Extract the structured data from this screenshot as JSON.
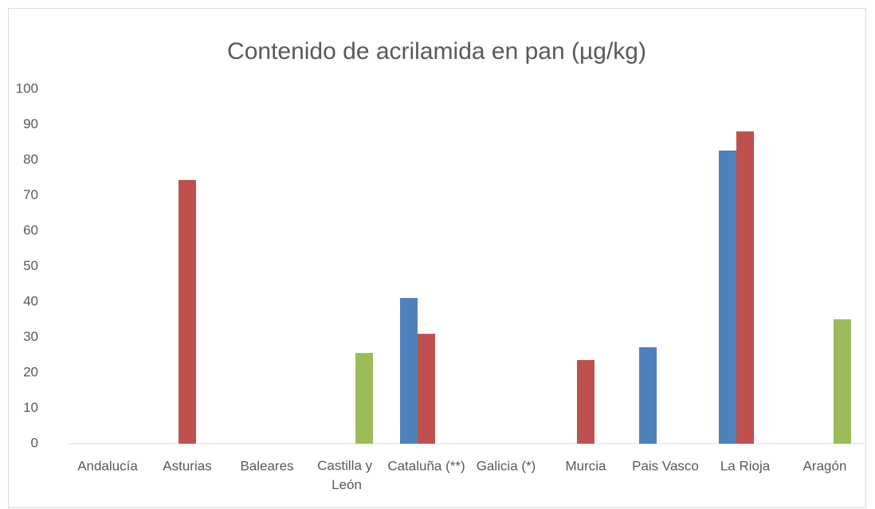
{
  "chart_data": {
    "type": "bar",
    "title": "Contenido de acrilamida en pan (µg/kg)",
    "categories": [
      "Andalucía",
      "Asturias",
      "Baleares",
      "Castilla y León",
      "Cataluña (**)",
      "Galicia (*)",
      "Murcia",
      "Pais Vasco",
      "La Rioja",
      "Aragón"
    ],
    "series": [
      {
        "color": "#4f81bd",
        "values": [
          null,
          null,
          null,
          null,
          41.1,
          null,
          null,
          27.2,
          82.7,
          null
        ]
      },
      {
        "color": "#c0504d",
        "values": [
          null,
          74.4,
          null,
          null,
          31,
          null,
          23.6,
          null,
          88.1,
          null
        ]
      },
      {
        "color": "#9bbb59",
        "values": [
          null,
          null,
          null,
          25.6,
          null,
          null,
          null,
          null,
          null,
          35.1
        ]
      }
    ],
    "ylim": [
      0,
      100
    ],
    "yticks": [
      0,
      10,
      20,
      30,
      40,
      50,
      60,
      70,
      80,
      90,
      100
    ],
    "grid": false
  }
}
